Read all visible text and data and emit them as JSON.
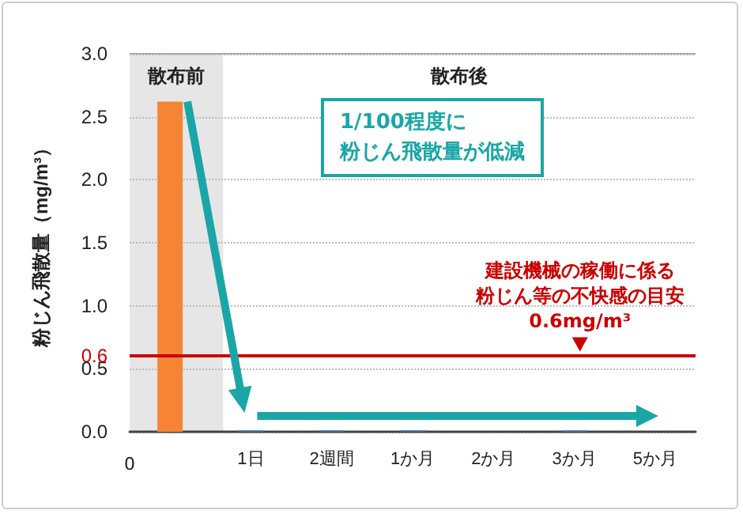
{
  "chart_data": {
    "type": "bar",
    "ylabel": "粉じん飛散量（mg/m³）",
    "categories": [
      null,
      "1日",
      "2週間",
      "1か月",
      "2か月",
      "3か月",
      "5か月"
    ],
    "values": [
      2.62,
      0.01,
      0.01,
      0.01,
      null,
      0.01,
      null
    ],
    "colors": [
      "#f58535",
      "#2e75b6",
      "#2e75b6",
      "#2e75b6",
      "#2e75b6",
      "#2e75b6",
      "#2e75b6"
    ],
    "ylim": [
      0,
      3
    ],
    "yticks": [
      {
        "value": 0,
        "label": "0.0"
      },
      {
        "value": 0.5,
        "label": "0.5"
      },
      {
        "value": 0.6,
        "label": "0.6"
      },
      {
        "value": 1,
        "label": "1.0"
      },
      {
        "value": 1.5,
        "label": "1.5"
      },
      {
        "value": 2,
        "label": "2.0"
      },
      {
        "value": 2.5,
        "label": "2.5"
      },
      {
        "value": 3,
        "label": "3.0"
      }
    ],
    "grid": "y",
    "ref_lines": [
      {
        "axis": "y",
        "value": 0.6,
        "label": "建設機械の稼働に係る粉じん等の不快感の目安0.6mg/m³",
        "color": "#cc0000"
      }
    ],
    "annotations": [
      "0",
      "散布前",
      "散布後",
      "1/100程度に粉じん飛散量が低減"
    ]
  }
}
